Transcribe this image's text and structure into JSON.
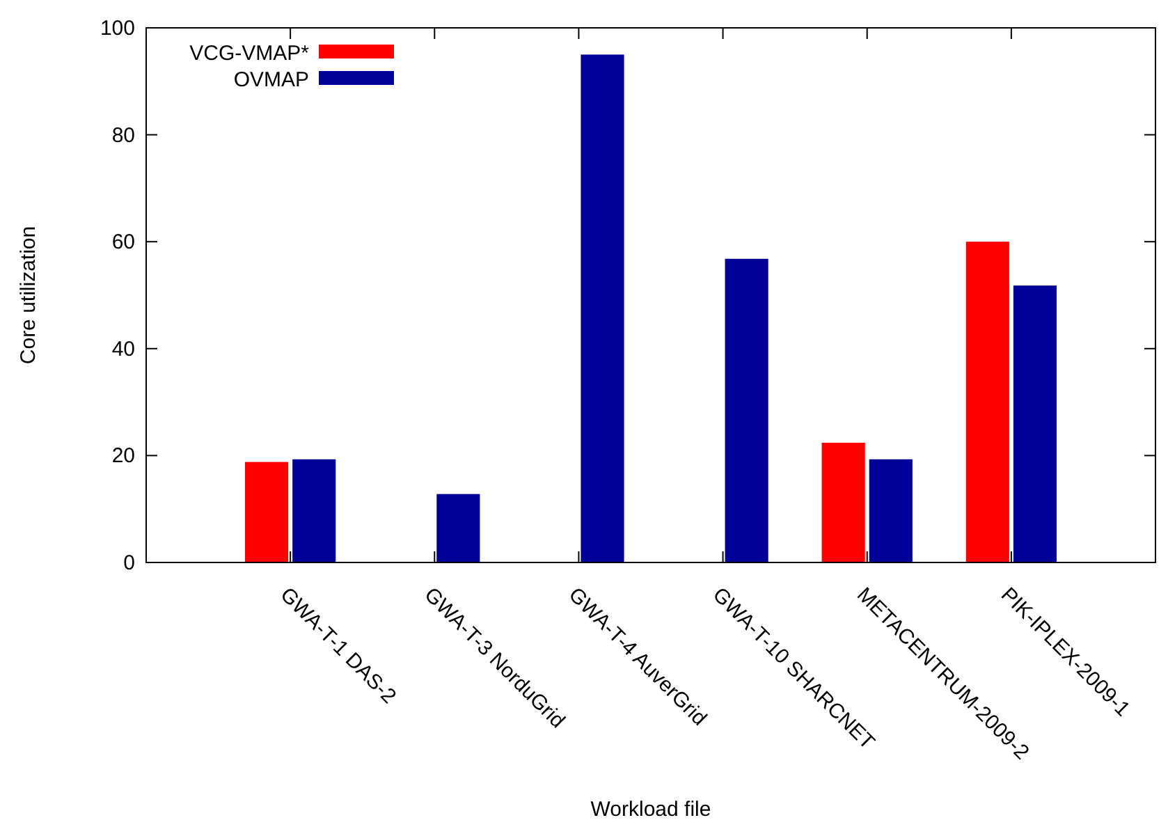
{
  "chart_data": {
    "type": "bar",
    "xlabel": "Workload file",
    "ylabel": "Core utilization",
    "categories": [
      "GWA-T-1 DAS-2",
      "GWA-T-3 NorduGrid",
      "GWA-T-4 AuverGrid",
      "GWA-T-10 SHARCNET",
      "METACENTRUM-2009-2",
      "PIK-IPLEX-2009-1"
    ],
    "series": [
      {
        "name": "VCG-VMAP*",
        "color": "#ff0000",
        "values": [
          18.8,
          null,
          null,
          null,
          22.4,
          60
        ]
      },
      {
        "name": "OVMAP",
        "color": "#000099",
        "values": [
          19.3,
          12.8,
          95,
          56.8,
          19.3,
          51.8
        ]
      }
    ],
    "ylim": [
      0,
      100
    ],
    "yticks": [
      0,
      20,
      40,
      60,
      80,
      100
    ],
    "grid": false,
    "legend": "top left"
  }
}
